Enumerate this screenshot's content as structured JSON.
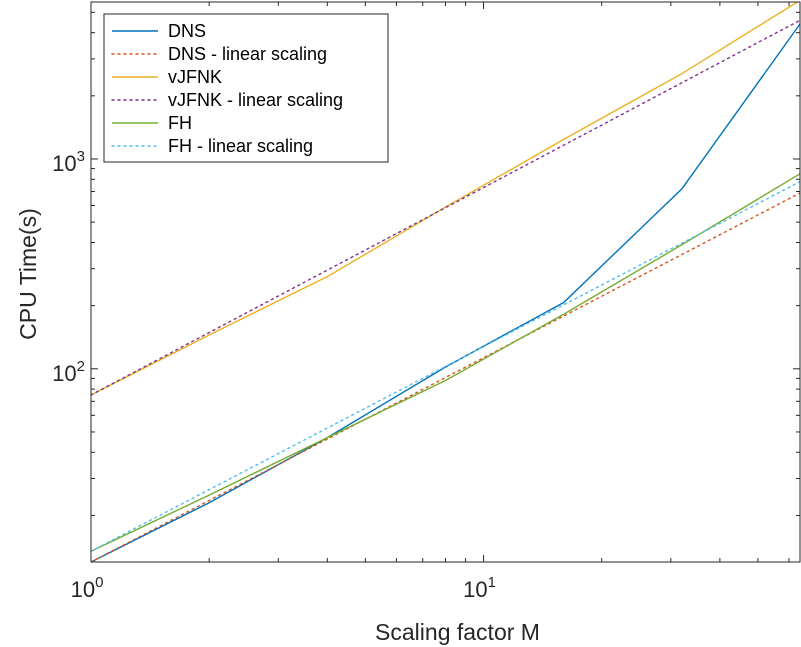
{
  "chart_data": {
    "type": "line",
    "xlabel": "Scaling factor M",
    "ylabel": "CPU Time(s)",
    "xscale": "log",
    "yscale": "log",
    "xlim": [
      1,
      64
    ],
    "ylim": [
      12,
      5600
    ],
    "x_ticks": [
      {
        "value": 1,
        "base": "10",
        "exp": "0"
      },
      {
        "value": 10,
        "base": "10",
        "exp": "1"
      }
    ],
    "y_ticks": [
      {
        "value": 100,
        "base": "10",
        "exp": "2"
      },
      {
        "value": 1000,
        "base": "10",
        "exp": "3"
      }
    ],
    "legend_position": "top-left",
    "grid": false,
    "series": [
      {
        "name": "DNS",
        "color": "#0072BD",
        "style": "solid",
        "x": [
          1,
          2,
          4,
          8,
          16,
          32,
          64
        ],
        "y": [
          12,
          23,
          47,
          102,
          207,
          720,
          4400
        ]
      },
      {
        "name": "DNS - linear scaling",
        "color": "#D95319",
        "style": "dotted",
        "x": [
          1,
          64
        ],
        "y": [
          12,
          688
        ]
      },
      {
        "name": "vJFNK",
        "color": "#EDB120",
        "style": "solid",
        "x": [
          1,
          2,
          4,
          8,
          16,
          32,
          64
        ],
        "y": [
          75,
          145,
          275,
          590,
          1240,
          2550,
          5700
        ]
      },
      {
        "name": "vJFNK - linear scaling",
        "color": "#7E2F8E",
        "style": "dotted",
        "x": [
          1,
          64
        ],
        "y": [
          75,
          4580
        ]
      },
      {
        "name": "FH",
        "color": "#77AC30",
        "style": "solid",
        "x": [
          1,
          2,
          4,
          8,
          16,
          32,
          64
        ],
        "y": [
          13.5,
          25,
          47,
          88,
          182,
          390,
          850
        ]
      },
      {
        "name": "FH - linear scaling",
        "color": "#4DBEEE",
        "style": "dotted",
        "x": [
          1,
          64
        ],
        "y": [
          13.5,
          780
        ]
      }
    ]
  }
}
